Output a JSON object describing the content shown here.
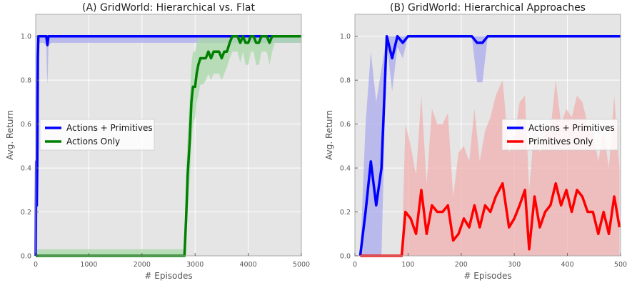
{
  "colors": {
    "background": "#e5e5e5",
    "grid": "#ffffff",
    "blue": "#0000ff",
    "green": "#008000",
    "red": "#ff0000",
    "blue_band": "#aaaaee",
    "green_band": "#a8d8a8",
    "red_band": "#f0b0b0"
  },
  "chart_data": [
    {
      "type": "line",
      "title": "(A) GridWorld: Hierarchical vs. Flat",
      "xlabel": "# Episodes",
      "ylabel": "Avg. Return",
      "xlim": [
        0,
        5000
      ],
      "ylim": [
        0,
        1.1
      ],
      "xticks": [
        0,
        1000,
        2000,
        3000,
        4000,
        5000
      ],
      "yticks": [
        0.0,
        0.2,
        0.4,
        0.6,
        0.8,
        1.0
      ],
      "xtick_labels": [
        "0",
        "1000",
        "2000",
        "3000",
        "4000",
        "5000"
      ],
      "ytick_labels": [
        "0.0",
        "0.2",
        "0.4",
        "0.6",
        "0.8",
        "1.0"
      ],
      "grid": true,
      "legend_position": "center-left",
      "series": [
        {
          "name": "Actions + Primitives",
          "color": "#0000ff",
          "band_color": "#aaaaee",
          "x": [
            0,
            10,
            20,
            30,
            40,
            50,
            60,
            80,
            100,
            150,
            200,
            210,
            220,
            230,
            240,
            300,
            400,
            1000,
            2000,
            3000,
            4000,
            5000
          ],
          "y": [
            0.0,
            0.43,
            0.23,
            0.43,
            0.9,
            1.0,
            1.0,
            1.0,
            1.0,
            1.0,
            1.0,
            0.98,
            0.96,
            0.98,
            1.0,
            1.0,
            1.0,
            1.0,
            1.0,
            1.0,
            1.0,
            1.0
          ],
          "lower": [
            0.0,
            0.0,
            0.0,
            0.05,
            0.6,
            0.97,
            0.97,
            0.97,
            0.97,
            0.97,
            0.96,
            0.85,
            0.78,
            0.85,
            0.96,
            0.97,
            0.97,
            0.97,
            0.97,
            0.97,
            0.97,
            0.97
          ],
          "upper": [
            0.0,
            0.9,
            1.0,
            1.0,
            1.0,
            1.0,
            1.0,
            1.0,
            1.0,
            1.0,
            1.0,
            1.0,
            1.0,
            1.0,
            1.0,
            1.0,
            1.0,
            1.0,
            1.0,
            1.0,
            1.0,
            1.0
          ]
        },
        {
          "name": "Actions Only",
          "color": "#008000",
          "band_color": "#a8d8a8",
          "x": [
            0,
            500,
            1000,
            1500,
            2000,
            2500,
            2800,
            2830,
            2860,
            2900,
            2930,
            2960,
            3000,
            3030,
            3060,
            3100,
            3150,
            3200,
            3250,
            3300,
            3350,
            3400,
            3450,
            3500,
            3550,
            3600,
            3650,
            3700,
            3750,
            3800,
            3850,
            3900,
            3950,
            4000,
            4050,
            4100,
            4150,
            4200,
            4250,
            4300,
            4350,
            4400,
            4450,
            4500,
            4600,
            4800,
            5000
          ],
          "y": [
            0.0,
            0.0,
            0.0,
            0.0,
            0.0,
            0.0,
            0.0,
            0.17,
            0.37,
            0.53,
            0.7,
            0.77,
            0.77,
            0.83,
            0.87,
            0.9,
            0.9,
            0.9,
            0.93,
            0.9,
            0.93,
            0.93,
            0.93,
            0.9,
            0.93,
            0.93,
            0.97,
            1.0,
            1.0,
            1.0,
            0.97,
            1.0,
            0.97,
            0.97,
            1.0,
            1.0,
            0.97,
            0.97,
            1.0,
            1.0,
            1.0,
            0.97,
            1.0,
            1.0,
            1.0,
            1.0,
            1.0
          ],
          "lower": [
            0.0,
            0.0,
            0.0,
            0.0,
            0.0,
            0.0,
            0.0,
            0.05,
            0.2,
            0.35,
            0.5,
            0.6,
            0.63,
            0.7,
            0.73,
            0.78,
            0.78,
            0.8,
            0.83,
            0.8,
            0.83,
            0.83,
            0.83,
            0.8,
            0.83,
            0.86,
            0.9,
            0.93,
            0.93,
            0.93,
            0.88,
            0.93,
            0.87,
            0.87,
            0.93,
            0.93,
            0.87,
            0.87,
            0.93,
            0.93,
            0.93,
            0.87,
            0.93,
            0.97,
            0.97,
            0.97,
            0.97
          ],
          "upper": [
            0.03,
            0.03,
            0.03,
            0.03,
            0.03,
            0.03,
            0.03,
            0.35,
            0.55,
            0.72,
            0.87,
            0.93,
            0.93,
            0.97,
            0.99,
            1.0,
            1.0,
            1.0,
            1.0,
            1.0,
            1.0,
            1.0,
            1.0,
            1.0,
            1.0,
            1.0,
            1.0,
            1.0,
            1.0,
            1.0,
            1.0,
            1.0,
            1.0,
            1.0,
            1.0,
            1.0,
            1.0,
            1.0,
            1.0,
            1.0,
            1.0,
            1.0,
            1.0,
            1.0,
            1.0,
            1.0,
            1.0
          ]
        }
      ]
    },
    {
      "type": "line",
      "title": "(B) GridWorld: Hierarchical Approaches",
      "xlabel": "# Episodes",
      "ylabel": "Avg. Return",
      "xlim": [
        0,
        500
      ],
      "ylim": [
        0,
        1.1
      ],
      "xticks": [
        0,
        100,
        200,
        300,
        400,
        500
      ],
      "yticks": [
        0.0,
        0.2,
        0.4,
        0.6,
        0.8,
        1.0
      ],
      "xtick_labels": [
        "0",
        "100",
        "200",
        "300",
        "400",
        "500"
      ],
      "ytick_labels": [
        "0.0",
        "0.2",
        "0.4",
        "0.6",
        "0.8",
        "1.0"
      ],
      "grid": true,
      "legend_position": "center-right",
      "series": [
        {
          "name": "Actions + Primitives",
          "color": "#0000ff",
          "band_color": "#aaaaee",
          "x": [
            10,
            20,
            30,
            40,
            50,
            60,
            70,
            80,
            90,
            100,
            110,
            120,
            130,
            140,
            150,
            160,
            170,
            180,
            190,
            200,
            210,
            220,
            230,
            240,
            250,
            260,
            270,
            280,
            290,
            300,
            350,
            400,
            450,
            500
          ],
          "y": [
            0.0,
            0.2,
            0.43,
            0.23,
            0.4,
            1.0,
            0.9,
            1.0,
            0.97,
            1.0,
            1.0,
            1.0,
            1.0,
            1.0,
            1.0,
            1.0,
            1.0,
            1.0,
            1.0,
            1.0,
            1.0,
            1.0,
            0.97,
            0.97,
            1.0,
            1.0,
            1.0,
            1.0,
            1.0,
            1.0,
            1.0,
            1.0,
            1.0,
            1.0
          ],
          "lower": [
            0.0,
            0.0,
            0.0,
            0.0,
            0.0,
            0.97,
            0.75,
            0.95,
            0.9,
            1.0,
            1.0,
            1.0,
            1.0,
            1.0,
            1.0,
            1.0,
            1.0,
            1.0,
            1.0,
            1.0,
            1.0,
            1.0,
            0.79,
            0.79,
            1.0,
            1.0,
            1.0,
            1.0,
            1.0,
            1.0,
            1.0,
            1.0,
            1.0,
            1.0
          ],
          "upper": [
            0.0,
            0.6,
            0.93,
            0.7,
            0.85,
            1.0,
            1.0,
            1.0,
            1.0,
            1.0,
            1.0,
            1.0,
            1.0,
            1.0,
            1.0,
            1.0,
            1.0,
            1.0,
            1.0,
            1.0,
            1.0,
            1.0,
            1.0,
            1.0,
            1.0,
            1.0,
            1.0,
            1.0,
            1.0,
            1.0,
            1.0,
            1.0,
            1.0,
            1.0
          ]
        },
        {
          "name": "Primitives Only",
          "color": "#ff0000",
          "band_color": "#f0b0b0",
          "x": [
            10,
            20,
            30,
            40,
            50,
            60,
            70,
            80,
            88,
            95,
            105,
            115,
            125,
            135,
            145,
            155,
            165,
            175,
            185,
            195,
            205,
            215,
            225,
            235,
            245,
            255,
            265,
            278,
            290,
            300,
            310,
            320,
            328,
            338,
            348,
            358,
            368,
            378,
            388,
            398,
            408,
            418,
            428,
            438,
            448,
            458,
            468,
            478,
            488,
            498
          ],
          "y": [
            0.0,
            0.0,
            0.0,
            0.0,
            0.0,
            0.0,
            0.0,
            0.0,
            0.0,
            0.2,
            0.17,
            0.1,
            0.3,
            0.1,
            0.23,
            0.2,
            0.2,
            0.23,
            0.07,
            0.1,
            0.17,
            0.13,
            0.23,
            0.13,
            0.23,
            0.2,
            0.27,
            0.33,
            0.13,
            0.17,
            0.23,
            0.3,
            0.03,
            0.27,
            0.13,
            0.2,
            0.23,
            0.33,
            0.23,
            0.3,
            0.2,
            0.3,
            0.27,
            0.2,
            0.2,
            0.1,
            0.2,
            0.1,
            0.27,
            0.13
          ],
          "lower": [
            0.0,
            0.0,
            0.0,
            0.0,
            0.0,
            0.0,
            0.0,
            0.0,
            0.0,
            0.0,
            0.0,
            0.0,
            0.0,
            0.0,
            0.0,
            0.0,
            0.0,
            0.0,
            0.0,
            0.0,
            0.0,
            0.0,
            0.0,
            0.0,
            0.0,
            0.0,
            0.0,
            0.0,
            0.0,
            0.0,
            0.0,
            0.0,
            0.0,
            0.0,
            0.0,
            0.0,
            0.0,
            0.0,
            0.0,
            0.0,
            0.0,
            0.0,
            0.0,
            0.0,
            0.0,
            0.0,
            0.0,
            0.0,
            0.0,
            0.0
          ],
          "upper": [
            0.0,
            0.0,
            0.0,
            0.0,
            0.0,
            0.0,
            0.0,
            0.0,
            0.0,
            0.6,
            0.5,
            0.37,
            0.73,
            0.33,
            0.67,
            0.6,
            0.6,
            0.65,
            0.27,
            0.47,
            0.5,
            0.43,
            0.67,
            0.43,
            0.57,
            0.63,
            0.73,
            0.8,
            0.47,
            0.53,
            0.7,
            0.73,
            0.3,
            0.6,
            0.47,
            0.6,
            0.57,
            0.8,
            0.6,
            0.67,
            0.63,
            0.73,
            0.7,
            0.6,
            0.57,
            0.43,
            0.57,
            0.4,
            0.73,
            0.4
          ]
        }
      ]
    }
  ]
}
